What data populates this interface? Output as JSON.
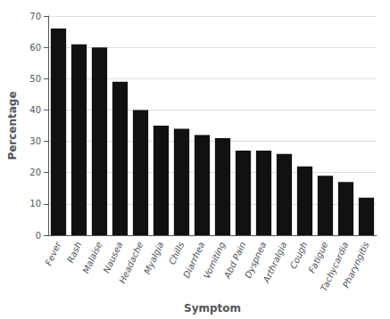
{
  "chart_data": {
    "type": "bar",
    "categories": [
      "Fever",
      "Rash",
      "Malaise",
      "Nausea",
      "Headache",
      "Myalgia",
      "Chills",
      "Diarrhea",
      "Vomiting",
      "Abd Pain",
      "Dyspnea",
      "Arthralgia",
      "Cough",
      "Fatigue",
      "Tachycardia",
      "Pharyngitis"
    ],
    "values": [
      66,
      61,
      60,
      49,
      40,
      35,
      34,
      32,
      31,
      27,
      27,
      26,
      22,
      19,
      17,
      12
    ],
    "color": "#111111",
    "xlabel": "Symptom",
    "ylabel": "Percentage",
    "ylim": [
      0,
      70
    ],
    "yticks": [
      0,
      10,
      20,
      30,
      40,
      50,
      60,
      70
    ],
    "grid": true
  }
}
